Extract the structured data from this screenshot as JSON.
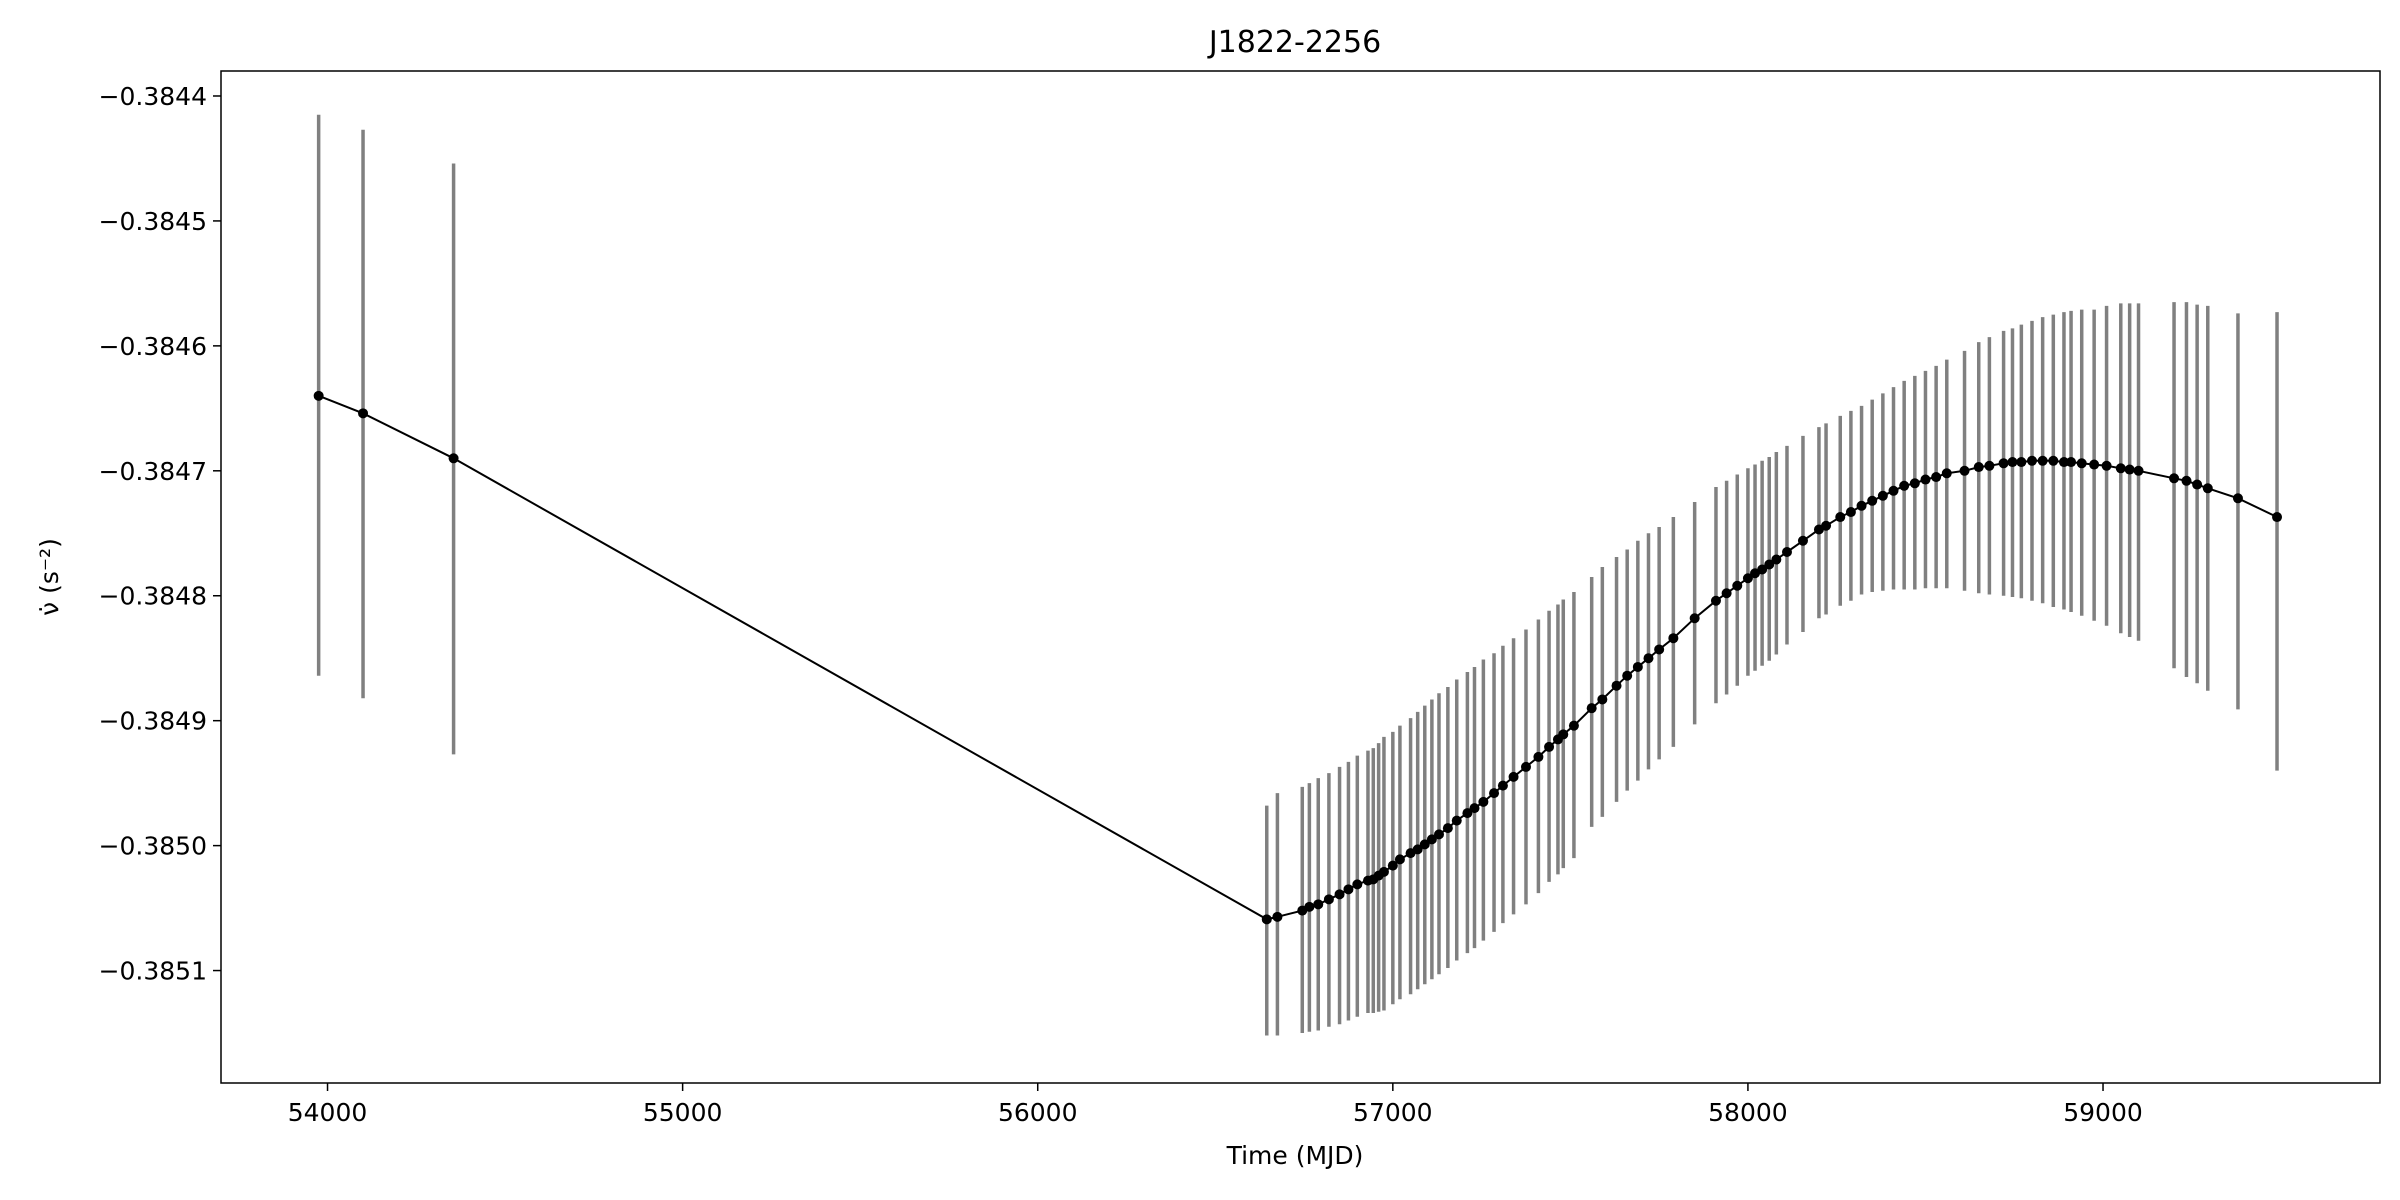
{
  "chart_data": {
    "type": "line",
    "title": "J1822-2256",
    "xlabel": "Time (MJD)",
    "ylabel": "ν̇ (s⁻²)",
    "xlim": [
      53700,
      59780
    ],
    "ylim": [
      -0.38519,
      -0.38438
    ],
    "x_ticks": [
      54000,
      55000,
      56000,
      57000,
      58000,
      59000
    ],
    "x_tick_labels": [
      "54000",
      "55000",
      "56000",
      "57000",
      "58000",
      "59000"
    ],
    "y_ticks": [
      -0.3844,
      -0.3845,
      -0.3846,
      -0.3847,
      -0.3848,
      -0.3849,
      -0.385,
      -0.3851
    ],
    "y_tick_labels": [
      "−0.3844",
      "−0.3845",
      "−0.3846",
      "−0.3847",
      "−0.3848",
      "−0.3849",
      "−0.3850",
      "−0.3851"
    ],
    "grid": false,
    "line_color": "#000000",
    "marker_color": "#000000",
    "errorbar_color": "#808080",
    "series": [
      {
        "x": [
          53975,
          54100,
          54355,
          56645,
          56675,
          56745,
          56765,
          56790,
          56820,
          56850,
          56875,
          56900,
          56930,
          56945,
          56960,
          56975,
          57000,
          57020,
          57050,
          57070,
          57090,
          57110,
          57130,
          57155,
          57180,
          57210,
          57230,
          57255,
          57285,
          57310,
          57340,
          57375,
          57410,
          57440,
          57465,
          57480,
          57510,
          57560,
          57590,
          57630,
          57660,
          57690,
          57720,
          57750,
          57790,
          57850,
          57910,
          57940,
          57970,
          58000,
          58020,
          58040,
          58060,
          58080,
          58110,
          58155,
          58200,
          58220,
          58260,
          58290,
          58320,
          58350,
          58380,
          58410,
          58440,
          58470,
          58500,
          58530,
          58560,
          58610,
          58650,
          58680,
          58720,
          58745,
          58770,
          58800,
          58830,
          58860,
          58890,
          58910,
          58940,
          58975,
          59010,
          59050,
          59075,
          59100,
          59200,
          59235,
          59265,
          59295,
          59380,
          59490
        ],
        "y": [
          -0.38464,
          -0.384654,
          -0.38469,
          -0.385059,
          -0.385057,
          -0.385052,
          -0.385049,
          -0.385047,
          -0.385043,
          -0.385039,
          -0.385035,
          -0.385031,
          -0.385028,
          -0.385027,
          -0.385024,
          -0.385021,
          -0.385016,
          -0.385011,
          -0.385006,
          -0.385003,
          -0.384999,
          -0.384995,
          -0.384991,
          -0.384986,
          -0.38498,
          -0.384974,
          -0.38497,
          -0.384965,
          -0.384958,
          -0.384952,
          -0.384945,
          -0.384937,
          -0.384929,
          -0.384921,
          -0.384915,
          -0.384911,
          -0.384904,
          -0.38489,
          -0.384883,
          -0.384872,
          -0.384864,
          -0.384857,
          -0.38485,
          -0.384843,
          -0.384834,
          -0.384818,
          -0.384804,
          -0.384798,
          -0.384792,
          -0.384786,
          -0.384782,
          -0.384779,
          -0.384775,
          -0.384771,
          -0.384765,
          -0.384756,
          -0.384747,
          -0.384744,
          -0.384737,
          -0.384733,
          -0.384728,
          -0.384724,
          -0.38472,
          -0.384716,
          -0.384712,
          -0.38471,
          -0.384707,
          -0.384705,
          -0.384702,
          -0.3847,
          -0.384697,
          -0.384696,
          -0.384694,
          -0.384693,
          -0.384693,
          -0.384692,
          -0.384692,
          -0.384692,
          -0.384693,
          -0.384693,
          -0.384694,
          -0.384695,
          -0.384696,
          -0.384698,
          -0.384699,
          -0.3847,
          -0.384706,
          -0.384708,
          -0.384711,
          -0.384714,
          -0.384722,
          -0.384737
        ],
        "yerr_low": [
          -0.384864,
          -0.384882,
          -0.384927,
          -0.385152,
          -0.385152,
          -0.38515,
          -0.385149,
          -0.385148,
          -0.385145,
          -0.385143,
          -0.38514,
          -0.385137,
          -0.385134,
          -0.385134,
          -0.385133,
          -0.385132,
          -0.385127,
          -0.385123,
          -0.385119,
          -0.385115,
          -0.385111,
          -0.385107,
          -0.385103,
          -0.385098,
          -0.385092,
          -0.385086,
          -0.385082,
          -0.385076,
          -0.385069,
          -0.385062,
          -0.385055,
          -0.385047,
          -0.385038,
          -0.385029,
          -0.385023,
          -0.385018,
          -0.38501,
          -0.384985,
          -0.384977,
          -0.384965,
          -0.384956,
          -0.384948,
          -0.384939,
          -0.384931,
          -0.384921,
          -0.384903,
          -0.384886,
          -0.384879,
          -0.384872,
          -0.384864,
          -0.38486,
          -0.384856,
          -0.384852,
          -0.384847,
          -0.384839,
          -0.384829,
          -0.384818,
          -0.384815,
          -0.384808,
          -0.384804,
          -0.384799,
          -0.384797,
          -0.384796,
          -0.384795,
          -0.384795,
          -0.384795,
          -0.384794,
          -0.384794,
          -0.384794,
          -0.384796,
          -0.384798,
          -0.384799,
          -0.3848,
          -0.384801,
          -0.384802,
          -0.384804,
          -0.384806,
          -0.384809,
          -0.384811,
          -0.384813,
          -0.384816,
          -0.38482,
          -0.384824,
          -0.38483,
          -0.384833,
          -0.384836,
          -0.384858,
          -0.384865,
          -0.38487,
          -0.384876,
          -0.384891,
          -0.38494
        ],
        "yerr_high": [
          -0.384415,
          -0.384427,
          -0.384454,
          -0.384968,
          -0.384958,
          -0.384953,
          -0.38495,
          -0.384946,
          -0.384942,
          -0.384937,
          -0.384933,
          -0.384928,
          -0.384924,
          -0.384922,
          -0.384918,
          -0.384913,
          -0.384909,
          -0.384904,
          -0.384898,
          -0.384893,
          -0.384888,
          -0.384883,
          -0.384878,
          -0.384873,
          -0.384867,
          -0.384861,
          -0.384857,
          -0.384851,
          -0.384846,
          -0.38484,
          -0.384834,
          -0.384827,
          -0.384819,
          -0.384812,
          -0.384807,
          -0.384803,
          -0.384797,
          -0.384785,
          -0.384777,
          -0.384769,
          -0.384763,
          -0.384756,
          -0.38475,
          -0.384745,
          -0.384737,
          -0.384725,
          -0.384713,
          -0.384708,
          -0.384703,
          -0.384698,
          -0.384695,
          -0.384692,
          -0.384689,
          -0.384685,
          -0.38468,
          -0.384672,
          -0.384665,
          -0.384662,
          -0.384656,
          -0.384652,
          -0.384648,
          -0.384643,
          -0.384638,
          -0.384633,
          -0.384628,
          -0.384624,
          -0.38462,
          -0.384616,
          -0.384611,
          -0.384604,
          -0.384597,
          -0.384593,
          -0.384588,
          -0.384586,
          -0.384583,
          -0.38458,
          -0.384577,
          -0.384575,
          -0.384573,
          -0.384572,
          -0.384571,
          -0.384571,
          -0.384568,
          -0.384566,
          -0.384566,
          -0.384566,
          -0.384565,
          -0.384565,
          -0.384567,
          -0.384568,
          -0.384574,
          -0.384573
        ]
      }
    ]
  }
}
